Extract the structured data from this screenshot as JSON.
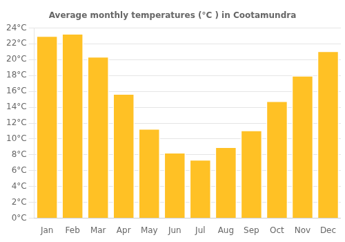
{
  "chart_data": {
    "type": "bar",
    "title": "Average monthly temperatures (°C ) in Cootamundra",
    "categories": [
      "Jan",
      "Feb",
      "Mar",
      "Apr",
      "May",
      "Jun",
      "Jul",
      "Aug",
      "Sep",
      "Oct",
      "Nov",
      "Dec"
    ],
    "values": [
      23.0,
      23.3,
      20.4,
      15.7,
      11.3,
      8.3,
      7.4,
      9.0,
      11.1,
      14.8,
      18.0,
      21.1
    ],
    "color": "#FFC125",
    "ylim": [
      0,
      24
    ],
    "yticks": [
      {
        "value": 0,
        "label": "0°C"
      },
      {
        "value": 2,
        "label": "2°C"
      },
      {
        "value": 4,
        "label": "4°C"
      },
      {
        "value": 6,
        "label": "6°C"
      },
      {
        "value": 8,
        "label": "8°C"
      },
      {
        "value": 10,
        "label": "10°C"
      },
      {
        "value": 12,
        "label": "12°C"
      },
      {
        "value": 14,
        "label": "14°C"
      },
      {
        "value": 16,
        "label": "16°C"
      },
      {
        "value": 18,
        "label": "18°C"
      },
      {
        "value": 20,
        "label": "20°C"
      },
      {
        "value": 22,
        "label": "22°C"
      },
      {
        "value": 24,
        "label": "24°C"
      }
    ],
    "grid": true
  }
}
